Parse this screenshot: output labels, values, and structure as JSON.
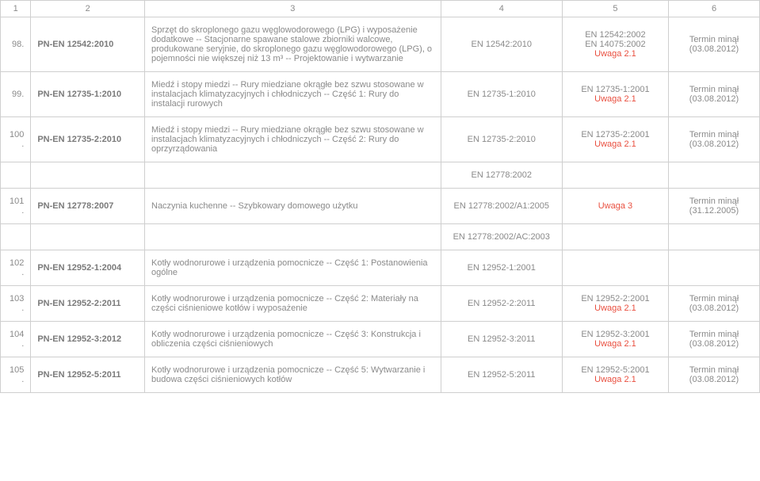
{
  "colors": {
    "border": "#cfcfcf",
    "text": "#8a8a8a",
    "link": "#e94f3f",
    "background": "#ffffff"
  },
  "columns": {
    "c1": "1",
    "c2": "2",
    "c3": "3",
    "c4": "4",
    "c5": "5",
    "c6": "6"
  },
  "rows": [
    {
      "num": "98.",
      "ref": "PN-EN 12542:2010",
      "desc": "Sprzęt do skroplonego gazu węglowodorowego (LPG) i wyposażenie dodatkowe -- Stacjonarne spawane stalowe zbiorniki walcowe, produkowane seryjnie, do skroplonego gazu węglowodorowego (LPG), o pojemności nie większej niż 13 m³ -- Projektowanie i wytwarzanie",
      "en": "EN 12542:2010",
      "repl_lines": [
        "EN 12542:2002",
        "EN 14075:2002"
      ],
      "uwaga": "Uwaga 2.1",
      "date": "Termin minął (03.08.2012)"
    },
    {
      "num": "99.",
      "ref": "PN-EN 12735-1:2010",
      "desc": "Miedź i stopy miedzi -- Rury miedziane okrągłe bez szwu stosowane w instalacjach klimatyzacyjnych i chłodniczych -- Część 1: Rury do instalacji rurowych",
      "en": "EN 12735-1:2010",
      "repl_lines": [
        "EN 12735-1:2001"
      ],
      "uwaga": "Uwaga 2.1",
      "date": "Termin minął (03.08.2012)"
    },
    {
      "num": "100.",
      "ref": "PN-EN 12735-2:2010",
      "desc": "Miedź i stopy miedzi -- Rury miedziane okrągłe bez szwu stosowane w instalacjach klimatyzacyjnych i chłodniczych -- Część 2: Rury do oprzyrządowania",
      "en": "EN 12735-2:2010",
      "repl_lines": [
        "EN 12735-2:2001"
      ],
      "uwaga": "Uwaga 2.1",
      "date": "Termin minął (03.08.2012)"
    },
    {
      "num": "101.",
      "ref": "PN-EN 12778:2007",
      "desc": "Naczynia kuchenne -- Szybkowary domowego użytku",
      "en": "EN 12778:2002/A1:2005",
      "pre": "EN 12778:2002",
      "post": "EN 12778:2002/AC:2003",
      "uwaga": "Uwaga 3",
      "date": "Termin minął (31.12.2005)"
    },
    {
      "num": "102.",
      "ref": "PN-EN 12952-1:2004",
      "desc": "Kotły wodnorurowe i urządzenia pomocnicze -- Część 1: Postanowienia ogólne",
      "en": "EN 12952-1:2001",
      "repl_lines": [],
      "uwaga": "",
      "date": ""
    },
    {
      "num": "103.",
      "ref": "PN-EN 12952-2:2011",
      "desc": "Kotły wodnorurowe i urządzenia pomocnicze -- Część 2: Materiały na części ciśnieniowe kotłów i wyposażenie",
      "en": "EN 12952-2:2011",
      "repl_lines": [
        "EN 12952-2:2001"
      ],
      "uwaga": "Uwaga 2.1",
      "date": "Termin minął (03.08.2012)"
    },
    {
      "num": "104.",
      "ref": "PN-EN 12952-3:2012",
      "desc": "Kotły wodnorurowe i urządzenia pomocnicze -- Część 3: Konstrukcja i obliczenia części ciśnieniowych",
      "en": "EN 12952-3:2011",
      "repl_lines": [
        "EN 12952-3:2001"
      ],
      "uwaga": "Uwaga 2.1",
      "date": "Termin minął (03.08.2012)"
    },
    {
      "num": "105.",
      "ref": "PN-EN 12952-5:2011",
      "desc": "Kotły wodnorurowe i urządzenia pomocnicze -- Część 5: Wytwarzanie i budowa części ciśnieniowych kotłów",
      "en": "EN 12952-5:2011",
      "repl_lines": [
        "EN 12952-5:2001"
      ],
      "uwaga": "Uwaga 2.1",
      "date": "Termin minął (03.08.2012)"
    }
  ]
}
